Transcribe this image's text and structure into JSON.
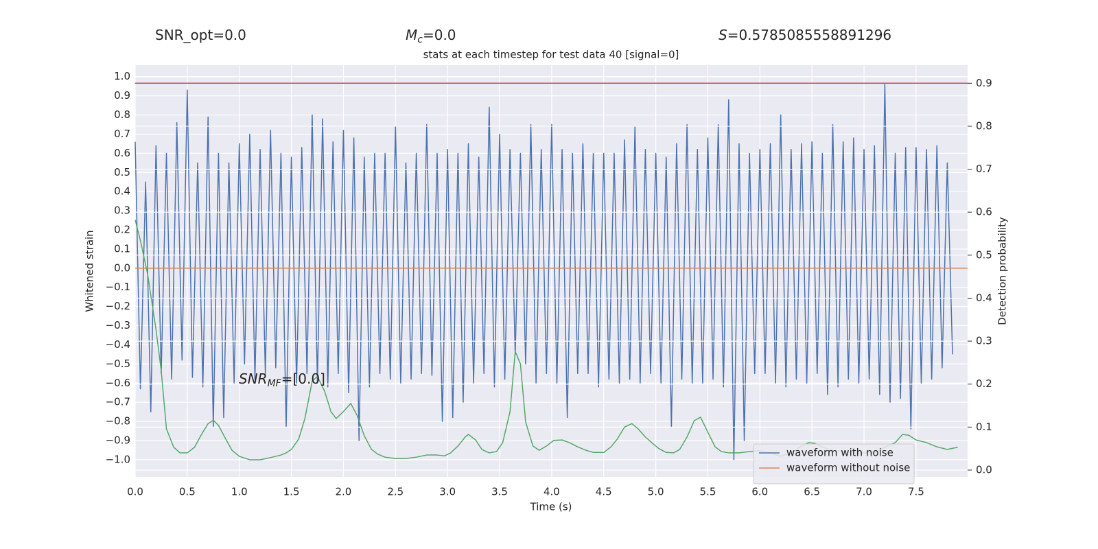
{
  "chart_data": {
    "type": "line",
    "title": "stats at each timestep for test data 40 [signal=0]",
    "xlabel": "Time (s)",
    "ylabel": "Whitened strain",
    "y2label": "Detection probability",
    "annotations": [
      {
        "base": "SNR_opt=0.0"
      },
      {
        "base": "M",
        "sub": "c",
        "suffix": "=0.0"
      },
      {
        "base": "S",
        "suffix": "=0.5785085558891296"
      },
      {
        "base": "SNR",
        "sub": "MF",
        "suffix": "=[0.0]"
      }
    ],
    "xlim": [
      0,
      7.995
    ],
    "xticks": [
      {
        "value": 0,
        "label": "0.0"
      },
      0.5,
      {
        "value": 1,
        "label": "1.0"
      },
      1.5,
      {
        "value": 2,
        "label": "2.0"
      },
      2.5,
      {
        "value": 3,
        "label": "3.0"
      },
      3.5,
      {
        "value": 4,
        "label": "4.0"
      },
      4.5,
      {
        "value": 5,
        "label": "5.0"
      },
      5.5,
      {
        "value": 6,
        "label": "6.0"
      },
      6.5,
      {
        "value": 7,
        "label": "7.0"
      },
      7.5
    ],
    "ylim": [
      -1.09,
      1.06
    ],
    "yticks": [
      {
        "value": 1,
        "label": "1.0"
      },
      0.9,
      0.8,
      0.7,
      0.6,
      0.5,
      0.4,
      0.3,
      0.2,
      0.1,
      {
        "value": 0,
        "label": "0.0"
      },
      {
        "value": -0.1,
        "label": "−0.1"
      },
      {
        "value": -0.2,
        "label": "−0.2"
      },
      {
        "value": -0.3,
        "label": "−0.3"
      },
      {
        "value": -0.4,
        "label": "−0.4"
      },
      {
        "value": -0.5,
        "label": "−0.5"
      },
      {
        "value": -0.6,
        "label": "−0.6"
      },
      {
        "value": -0.7,
        "label": "−0.7"
      },
      {
        "value": -0.8,
        "label": "−0.8"
      },
      {
        "value": -0.9,
        "label": "−0.9"
      },
      {
        "value": -1,
        "label": "−1.0"
      }
    ],
    "y2lim": [
      -0.016,
      0.942
    ],
    "y2ticks": [
      0.9,
      0.8,
      0.7,
      0.6,
      0.5,
      0.4,
      0.3,
      0.2,
      0.1,
      {
        "value": 0,
        "label": "0.0"
      }
    ],
    "grid": true,
    "legend": "lower right",
    "hlines": [
      {
        "value": 0.9,
        "axis": "y2",
        "color": "#c44e52"
      }
    ],
    "series": [
      {
        "name": "waveform with noise",
        "color": "#4c72b0",
        "step": 0.05,
        "values": [
          0.66,
          -0.63,
          0.45,
          -0.75,
          0.64,
          -0.55,
          0.6,
          -0.58,
          0.76,
          -0.48,
          0.93,
          -0.57,
          0.55,
          -0.62,
          0.79,
          -0.83,
          0.6,
          -0.78,
          0.55,
          -0.6,
          0.65,
          -0.5,
          0.7,
          -0.58,
          0.62,
          -0.55,
          0.72,
          -0.52,
          0.6,
          -0.83,
          0.58,
          -0.6,
          0.63,
          -0.55,
          0.8,
          -0.6,
          0.78,
          -0.62,
          0.66,
          -0.55,
          0.72,
          -0.65,
          0.68,
          -0.9,
          0.58,
          -0.62,
          0.6,
          -0.55,
          0.6,
          -0.58,
          0.74,
          -0.6,
          0.55,
          -0.58,
          0.6,
          -0.55,
          0.75,
          -0.56,
          0.6,
          -0.8,
          0.62,
          -0.78,
          0.6,
          -0.7,
          0.65,
          -0.6,
          0.58,
          -0.55,
          0.84,
          -0.62,
          0.7,
          -0.58,
          0.62,
          -0.45,
          0.6,
          -0.5,
          0.75,
          -0.6,
          0.62,
          -0.55,
          0.75,
          -0.6,
          0.62,
          -0.78,
          0.6,
          -0.55,
          0.65,
          -0.55,
          0.6,
          -0.62,
          0.6,
          -0.58,
          0.6,
          -0.6,
          0.67,
          -0.58,
          0.74,
          -0.6,
          0.62,
          -0.55,
          0.6,
          -0.6,
          0.58,
          -0.83,
          0.65,
          -0.58,
          0.75,
          -0.6,
          0.62,
          -0.6,
          0.68,
          -0.58,
          0.75,
          -0.62,
          0.88,
          -1.0,
          0.65,
          -0.9,
          0.6,
          -0.55,
          0.62,
          -0.55,
          0.65,
          -0.6,
          0.8,
          -0.62,
          0.62,
          -0.58,
          0.65,
          -0.6,
          0.66,
          -0.55,
          0.6,
          -0.66,
          0.75,
          -0.62,
          0.66,
          -0.58,
          0.68,
          -0.6,
          0.62,
          -0.58,
          0.64,
          -0.66,
          0.96,
          -0.7,
          0.6,
          -0.68,
          0.63,
          -0.84,
          0.63,
          -0.6,
          0.62,
          -0.58,
          0.64,
          -0.52,
          0.55,
          -0.45
        ]
      },
      {
        "name": "waveform without noise",
        "color": "#dd8452",
        "x": [
          0,
          7.995
        ],
        "values": [
          0,
          0
        ]
      },
      {
        "color": "#55a868",
        "axis": "y2",
        "x": [
          0,
          0.05,
          0.12,
          0.2,
          0.25,
          0.3,
          0.37,
          0.43,
          0.5,
          0.57,
          0.63,
          0.7,
          0.75,
          0.8,
          0.87,
          0.93,
          1.0,
          1.1,
          1.2,
          1.3,
          1.4,
          1.45,
          1.5,
          1.57,
          1.63,
          1.7,
          1.75,
          1.82,
          1.88,
          1.93,
          2.0,
          2.07,
          2.13,
          2.2,
          2.27,
          2.33,
          2.4,
          2.5,
          2.6,
          2.7,
          2.8,
          2.9,
          2.97,
          3.03,
          3.1,
          3.17,
          3.2,
          3.27,
          3.33,
          3.4,
          3.47,
          3.53,
          3.6,
          3.65,
          3.7,
          3.75,
          3.82,
          3.88,
          3.95,
          4.02,
          4.1,
          4.17,
          4.25,
          4.33,
          4.4,
          4.5,
          4.57,
          4.63,
          4.7,
          4.77,
          4.83,
          4.9,
          4.97,
          5.03,
          5.1,
          5.17,
          5.23,
          5.3,
          5.37,
          5.43,
          5.5,
          5.57,
          5.63,
          5.7,
          5.8,
          5.9,
          6.0,
          6.1,
          6.2,
          6.3,
          6.4,
          6.47,
          6.53,
          6.6,
          6.7,
          6.8,
          6.9,
          7.0,
          7.1,
          7.2,
          7.3,
          7.37,
          7.43,
          7.5,
          7.6,
          7.7,
          7.8,
          7.9
        ],
        "values": [
          0.582,
          0.534,
          0.455,
          0.327,
          0.231,
          0.096,
          0.053,
          0.04,
          0.04,
          0.053,
          0.08,
          0.108,
          0.116,
          0.104,
          0.072,
          0.046,
          0.032,
          0.024,
          0.024,
          0.029,
          0.035,
          0.04,
          0.048,
          0.072,
          0.12,
          0.207,
          0.218,
          0.183,
          0.136,
          0.12,
          0.136,
          0.155,
          0.128,
          0.08,
          0.048,
          0.037,
          0.03,
          0.027,
          0.027,
          0.03,
          0.035,
          0.035,
          0.033,
          0.04,
          0.056,
          0.077,
          0.083,
          0.07,
          0.048,
          0.04,
          0.043,
          0.064,
          0.136,
          0.276,
          0.247,
          0.112,
          0.056,
          0.046,
          0.056,
          0.069,
          0.07,
          0.064,
          0.054,
          0.046,
          0.041,
          0.041,
          0.054,
          0.072,
          0.1,
          0.108,
          0.096,
          0.077,
          0.062,
          0.05,
          0.041,
          0.04,
          0.048,
          0.077,
          0.115,
          0.123,
          0.088,
          0.054,
          0.043,
          0.04,
          0.04,
          0.043,
          0.045,
          0.04,
          0.032,
          0.04,
          0.056,
          0.064,
          0.062,
          0.053,
          0.046,
          0.043,
          0.04,
          0.04,
          0.04,
          0.053,
          0.064,
          0.083,
          0.081,
          0.07,
          0.064,
          0.054,
          0.048,
          0.053
        ]
      }
    ]
  }
}
